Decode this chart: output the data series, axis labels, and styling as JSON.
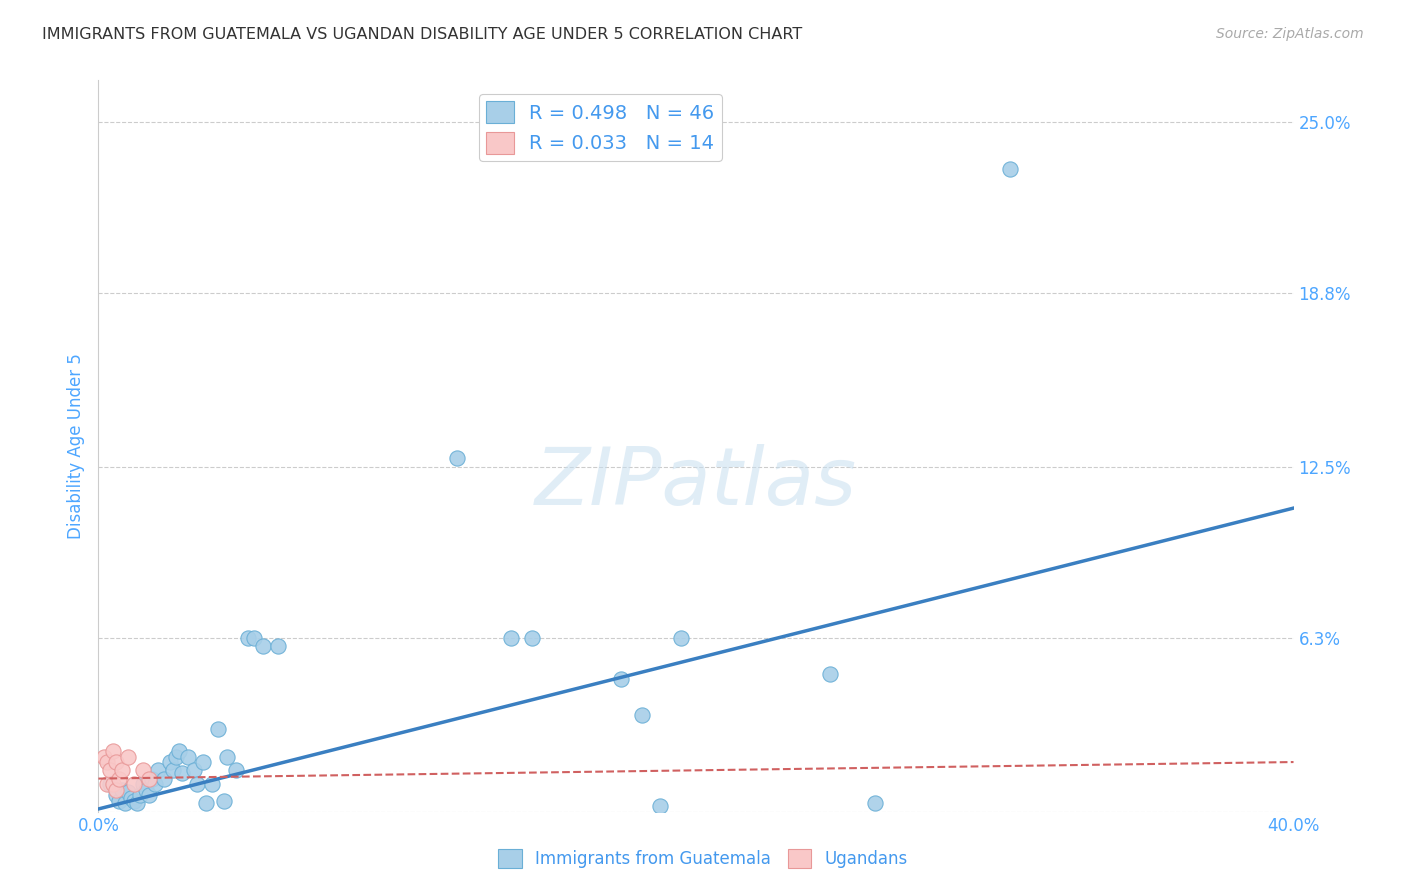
{
  "title": "IMMIGRANTS FROM GUATEMALA VS UGANDAN DISABILITY AGE UNDER 5 CORRELATION CHART",
  "source": "Source: ZipAtlas.com",
  "ylabel": "Disability Age Under 5",
  "xlim": [
    0.0,
    0.4
  ],
  "ylim": [
    0.0,
    0.265
  ],
  "xticks": [
    0.0,
    0.1,
    0.2,
    0.3,
    0.4
  ],
  "xticklabels_shown": [
    "0.0%",
    "",
    "",
    "",
    "40.0%"
  ],
  "yticks_right": [
    0.0,
    0.063,
    0.125,
    0.188,
    0.25
  ],
  "ytick_labels_right": [
    "",
    "6.3%",
    "12.5%",
    "18.8%",
    "25.0%"
  ],
  "R_blue": 0.498,
  "N_blue": 46,
  "R_pink": 0.033,
  "N_pink": 14,
  "blue_color": "#a8cfe8",
  "blue_edge_color": "#6aafd6",
  "blue_line_color": "#3a7fc1",
  "pink_color": "#f9c8c8",
  "pink_edge_color": "#e89898",
  "pink_line_color": "#d06060",
  "grid_color": "#cccccc",
  "title_color": "#333333",
  "axis_label_color": "#4da6ff",
  "legend_label_color": "#4499ee",
  "watermark_text": "ZIPatlas",
  "blue_scatter_x": [
    0.004,
    0.006,
    0.007,
    0.008,
    0.009,
    0.01,
    0.011,
    0.012,
    0.013,
    0.014,
    0.015,
    0.016,
    0.017,
    0.018,
    0.019,
    0.02,
    0.022,
    0.024,
    0.025,
    0.026,
    0.027,
    0.028,
    0.03,
    0.032,
    0.033,
    0.035,
    0.036,
    0.038,
    0.04,
    0.042,
    0.043,
    0.046,
    0.05,
    0.052,
    0.055,
    0.06,
    0.12,
    0.138,
    0.145,
    0.175,
    0.182,
    0.188,
    0.195,
    0.245,
    0.26,
    0.305
  ],
  "blue_scatter_y": [
    0.01,
    0.006,
    0.004,
    0.008,
    0.003,
    0.007,
    0.005,
    0.004,
    0.003,
    0.006,
    0.01,
    0.008,
    0.006,
    0.012,
    0.01,
    0.015,
    0.012,
    0.018,
    0.015,
    0.02,
    0.022,
    0.014,
    0.02,
    0.015,
    0.01,
    0.018,
    0.003,
    0.01,
    0.03,
    0.004,
    0.02,
    0.015,
    0.063,
    0.063,
    0.06,
    0.06,
    0.128,
    0.063,
    0.063,
    0.048,
    0.035,
    0.002,
    0.063,
    0.05,
    0.003,
    0.233
  ],
  "pink_scatter_x": [
    0.002,
    0.003,
    0.003,
    0.004,
    0.005,
    0.005,
    0.006,
    0.006,
    0.007,
    0.008,
    0.01,
    0.012,
    0.015,
    0.017
  ],
  "pink_scatter_y": [
    0.02,
    0.01,
    0.018,
    0.015,
    0.01,
    0.022,
    0.008,
    0.018,
    0.012,
    0.015,
    0.02,
    0.01,
    0.015,
    0.012
  ],
  "blue_line_x0": 0.0,
  "blue_line_y0": 0.001,
  "blue_line_x1": 0.4,
  "blue_line_y1": 0.11,
  "pink_line_x0": 0.0,
  "pink_line_y0": 0.012,
  "pink_line_x1": 0.4,
  "pink_line_y1": 0.018
}
